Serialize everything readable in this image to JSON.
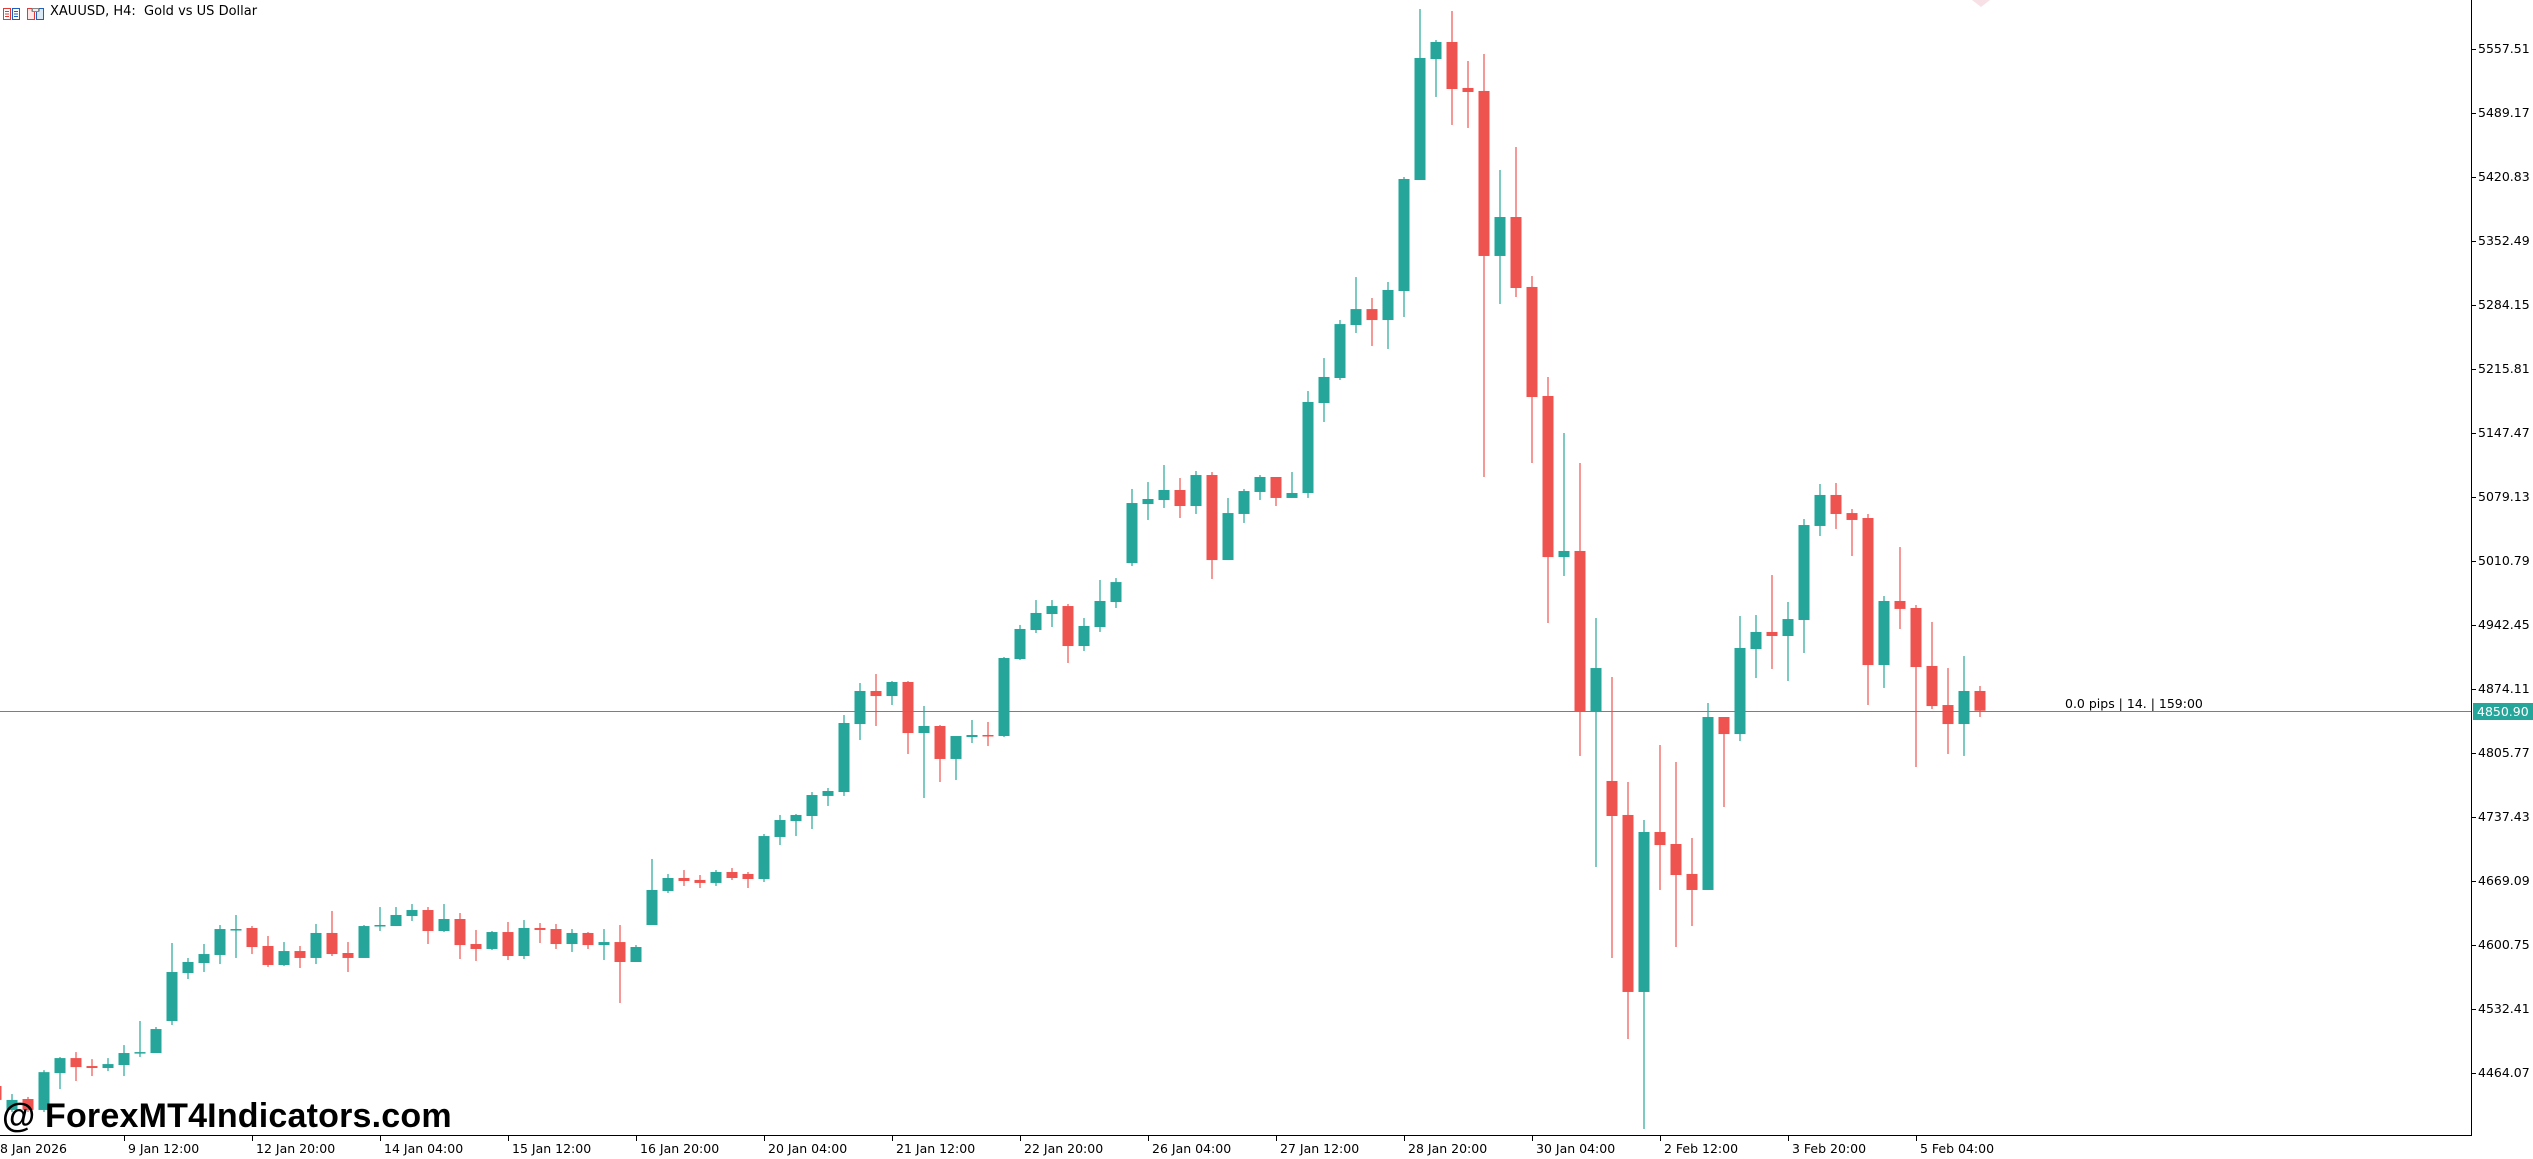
{
  "window": {
    "title": "XAUUSD, H4:  Gold vs US Dollar",
    "icons": [
      "chart-list-icon",
      "chart-template-icon"
    ]
  },
  "colors": {
    "bull": "#26a69a",
    "bear": "#ef5350",
    "price_line": "#26a69a",
    "axis": "#000000",
    "background": "#ffffff"
  },
  "price_axis": {
    "ticks": [
      "5557.51",
      "5489.17",
      "5420.83",
      "5352.49",
      "5284.15",
      "5215.81",
      "5147.47",
      "5079.13",
      "5010.79",
      "4942.45",
      "4874.11",
      "4805.77",
      "4737.43",
      "4669.09",
      "4600.75",
      "4532.41",
      "4464.07"
    ],
    "current_price": "4850.90"
  },
  "time_axis": {
    "labels": [
      "8 Jan 2026",
      "9 Jan 12:00",
      "12 Jan 20:00",
      "14 Jan 04:00",
      "15 Jan 12:00",
      "16 Jan 20:00",
      "20 Jan 04:00",
      "21 Jan 12:00",
      "22 Jan 20:00",
      "26 Jan 04:00",
      "27 Jan 12:00",
      "28 Jan 20:00",
      "30 Jan 04:00",
      "2 Feb 12:00",
      "3 Feb 20:00",
      "5 Feb 04:00"
    ]
  },
  "info_label": "0.0 pips | 14. | 159:00",
  "watermark": "@ ForexMT4Indicators.com",
  "chart_data": {
    "type": "candlestick",
    "title": "XAUUSD, H4: Gold vs US Dollar",
    "xlabel": "",
    "ylabel": "",
    "timeframe": "H4",
    "ylim": [
      4420,
      5610
    ],
    "grid": false,
    "last_price": 4850.9,
    "ohlc": [
      [
        4450.2,
        4456.6,
        4431.0,
        4435.3
      ],
      [
        4424.6,
        4441.6,
        4422.4,
        4435.3
      ],
      [
        4436.3,
        4438.5,
        4422.4,
        4424.6
      ],
      [
        4424.6,
        4467.1,
        4422.4,
        4465.0
      ],
      [
        4464.0,
        4481.1,
        4446.9,
        4480.0
      ],
      [
        4480.0,
        4486.4,
        4455.5,
        4470.4
      ],
      [
        4471.5,
        4478.9,
        4460.8,
        4469.4
      ],
      [
        4469.4,
        4480.0,
        4466.1,
        4473.6
      ],
      [
        4472.6,
        4493.9,
        4460.8,
        4485.4
      ],
      [
        4485.4,
        4519.6,
        4481.1,
        4486.4
      ],
      [
        4485.4,
        4513.2,
        4485.4,
        4511.0
      ],
      [
        4519.6,
        4602.9,
        4515.3,
        4571.9
      ],
      [
        4570.8,
        4586.9,
        4564.4,
        4582.6
      ],
      [
        4581.5,
        4601.8,
        4571.9,
        4591.1
      ],
      [
        4590.1,
        4622.1,
        4580.4,
        4617.8
      ],
      [
        4616.8,
        4632.8,
        4586.9,
        4617.8
      ],
      [
        4618.9,
        4621.0,
        4591.1,
        4598.6
      ],
      [
        4599.7,
        4610.4,
        4577.3,
        4579.4
      ],
      [
        4579.4,
        4603.9,
        4578.3,
        4594.3
      ],
      [
        4594.3,
        4599.7,
        4576.2,
        4586.9
      ],
      [
        4586.9,
        4623.2,
        4580.4,
        4613.6
      ],
      [
        4613.6,
        4637.1,
        4589.0,
        4591.1
      ],
      [
        4592.2,
        4603.9,
        4571.9,
        4586.9
      ],
      [
        4586.9,
        4622.1,
        4586.9,
        4621.0
      ],
      [
        4621.0,
        4641.3,
        4615.7,
        4622.1
      ],
      [
        4621.0,
        4641.3,
        4621.0,
        4632.8
      ],
      [
        4631.7,
        4644.5,
        4626.4,
        4638.1
      ],
      [
        4638.1,
        4641.3,
        4601.8,
        4615.7
      ],
      [
        4615.7,
        4644.5,
        4614.6,
        4628.5
      ],
      [
        4628.5,
        4634.9,
        4585.8,
        4600.7
      ],
      [
        4601.8,
        4616.8,
        4583.7,
        4596.5
      ],
      [
        4596.5,
        4615.7,
        4595.4,
        4614.6
      ],
      [
        4614.6,
        4625.3,
        4584.7,
        4589.0
      ],
      [
        4589.0,
        4627.4,
        4585.8,
        4618.9
      ],
      [
        4618.9,
        4624.2,
        4602.9,
        4616.8
      ],
      [
        4617.8,
        4623.2,
        4596.5,
        4601.8
      ],
      [
        4601.8,
        4617.8,
        4593.3,
        4613.6
      ],
      [
        4613.6,
        4614.6,
        4596.5,
        4600.7
      ],
      [
        4600.7,
        4617.8,
        4584.7,
        4603.9
      ],
      [
        4603.9,
        4622.1,
        4538.8,
        4582.6
      ],
      [
        4582.6,
        4600.7,
        4582.6,
        4598.6
      ],
      [
        4622.1,
        4692.6,
        4622.1,
        4659.5
      ],
      [
        4658.4,
        4676.6,
        4656.3,
        4672.3
      ],
      [
        4672.3,
        4680.8,
        4663.8,
        4669.1
      ],
      [
        4670.2,
        4675.5,
        4661.6,
        4667.0
      ],
      [
        4667.0,
        4680.8,
        4663.8,
        4678.7
      ],
      [
        4678.7,
        4683.0,
        4670.2,
        4672.3
      ],
      [
        4676.6,
        4678.7,
        4661.6,
        4671.2
      ],
      [
        4671.2,
        4719.3,
        4668.0,
        4717.1
      ],
      [
        4716.1,
        4739.6,
        4707.5,
        4734.2
      ],
      [
        4733.1,
        4740.6,
        4717.1,
        4739.6
      ],
      [
        4738.5,
        4764.1,
        4724.6,
        4760.9
      ],
      [
        4759.9,
        4768.4,
        4749.2,
        4765.2
      ],
      [
        4764.1,
        4846.3,
        4759.9,
        4837.8
      ],
      [
        4836.7,
        4880.5,
        4819.6,
        4872.0
      ],
      [
        4872.0,
        4890.1,
        4834.6,
        4866.6
      ],
      [
        4866.6,
        4882.6,
        4857.0,
        4881.6
      ],
      [
        4881.6,
        4882.6,
        4804.7,
        4827.1
      ],
      [
        4827.1,
        4856.0,
        4757.7,
        4834.6
      ],
      [
        4834.6,
        4835.7,
        4774.8,
        4799.4
      ],
      [
        4799.4,
        4823.9,
        4776.9,
        4823.9
      ],
      [
        4822.8,
        4841.0,
        4816.4,
        4825.0
      ],
      [
        4825.0,
        4838.9,
        4813.2,
        4823.9
      ],
      [
        4823.9,
        4908.3,
        4822.8,
        4907.2
      ],
      [
        4906.1,
        4942.5,
        4905.1,
        4938.2
      ],
      [
        4937.1,
        4969.1,
        4933.9,
        4955.3
      ],
      [
        4954.2,
        4969.1,
        4940.3,
        4962.7
      ],
      [
        4962.7,
        4964.9,
        4901.9,
        4920.0
      ],
      [
        4920.0,
        4949.9,
        4914.7,
        4941.4
      ],
      [
        4940.3,
        4990.5,
        4935.0,
        4968.1
      ],
      [
        4967.0,
        4992.6,
        4960.6,
        4988.3
      ],
      [
        5008.6,
        5087.7,
        5005.4,
        5072.7
      ],
      [
        5071.6,
        5095.1,
        5054.6,
        5077.0
      ],
      [
        5075.9,
        5113.3,
        5067.4,
        5086.6
      ],
      [
        5086.6,
        5099.4,
        5056.7,
        5069.5
      ],
      [
        5069.5,
        5106.9,
        5061.0,
        5102.6
      ],
      [
        5102.6,
        5105.8,
        4991.6,
        5011.8
      ],
      [
        5011.8,
        5078.1,
        5011.8,
        5062.0
      ],
      [
        5061.0,
        5087.7,
        5051.4,
        5085.5
      ],
      [
        5084.5,
        5102.6,
        5075.9,
        5100.5
      ],
      [
        5100.5,
        5100.5,
        5069.5,
        5078.1
      ],
      [
        5078.1,
        5105.8,
        5078.1,
        5083.4
      ],
      [
        5083.4,
        5192.3,
        5078.1,
        5180.6
      ],
      [
        5179.5,
        5227.5,
        5159.2,
        5207.3
      ],
      [
        5206.2,
        5268.1,
        5204.1,
        5263.8
      ],
      [
        5262.8,
        5314.0,
        5254.3,
        5279.8
      ],
      [
        5279.8,
        5291.6,
        5240.4,
        5268.1
      ],
      [
        5268.1,
        5308.7,
        5237.2,
        5300.2
      ],
      [
        5299.1,
        5420.8,
        5271.3,
        5418.7
      ],
      [
        5417.6,
        5600.2,
        5417.6,
        5547.9
      ],
      [
        5546.8,
        5567.1,
        5506.3,
        5565.0
      ],
      [
        5565.0,
        5598.1,
        5476.4,
        5514.8
      ],
      [
        5515.9,
        5544.7,
        5473.2,
        5511.6
      ],
      [
        5512.7,
        5552.2,
        5100.5,
        5336.5
      ],
      [
        5336.5,
        5428.3,
        5285.2,
        5378.1
      ],
      [
        5378.1,
        5452.9,
        5292.7,
        5302.3
      ],
      [
        5303.4,
        5315.1,
        5115.4,
        5185.9
      ],
      [
        5187.0,
        5207.3,
        4944.6,
        5015.0
      ],
      [
        5015.0,
        5147.5,
        4994.8,
        5021.5
      ],
      [
        5021.5,
        5115.4,
        4802.6,
        4850.6
      ],
      [
        4850.6,
        4949.9,
        4684.0,
        4896.5
      ],
      [
        4775.9,
        4886.9,
        4586.9,
        4738.5
      ],
      [
        4739.6,
        4774.8,
        4500.4,
        4550.6
      ],
      [
        4550.6,
        4734.2,
        4404.3,
        4721.4
      ],
      [
        4721.4,
        4814.3,
        4659.5,
        4707.5
      ],
      [
        4708.6,
        4796.2,
        4598.6,
        4675.5
      ],
      [
        4676.6,
        4715.0,
        4621.0,
        4659.5
      ],
      [
        4659.5,
        4859.2,
        4659.5,
        4844.2
      ],
      [
        4844.2,
        4844.2,
        4748.1,
        4826.0
      ],
      [
        4826.0,
        4952.1,
        4818.5,
        4917.9
      ],
      [
        4916.8,
        4953.1,
        4885.8,
        4935.0
      ],
      [
        4935.0,
        4995.8,
        4895.5,
        4930.7
      ],
      [
        4930.7,
        4967.0,
        4882.6,
        4948.8
      ],
      [
        4947.8,
        5055.6,
        4912.5,
        5049.2
      ],
      [
        5048.2,
        5093.0,
        5037.5,
        5081.3
      ],
      [
        5081.3,
        5094.1,
        5045.0,
        5061.0
      ],
      [
        5062.0,
        5066.3,
        5016.1,
        5054.6
      ],
      [
        5056.7,
        5061.0,
        4857.0,
        4899.7
      ],
      [
        4899.7,
        4973.4,
        4875.2,
        4968.1
      ],
      [
        4968.1,
        5025.7,
        4938.2,
        4959.6
      ],
      [
        4960.6,
        4963.8,
        4790.8,
        4897.6
      ],
      [
        4898.7,
        4945.7,
        4852.7,
        4855.9
      ],
      [
        4857.0,
        4896.5,
        4804.7,
        4836.7
      ],
      [
        4836.7,
        4909.3,
        4802.6,
        4872.0
      ],
      [
        4872.0,
        4877.3,
        4844.2,
        4850.9
      ]
    ]
  }
}
